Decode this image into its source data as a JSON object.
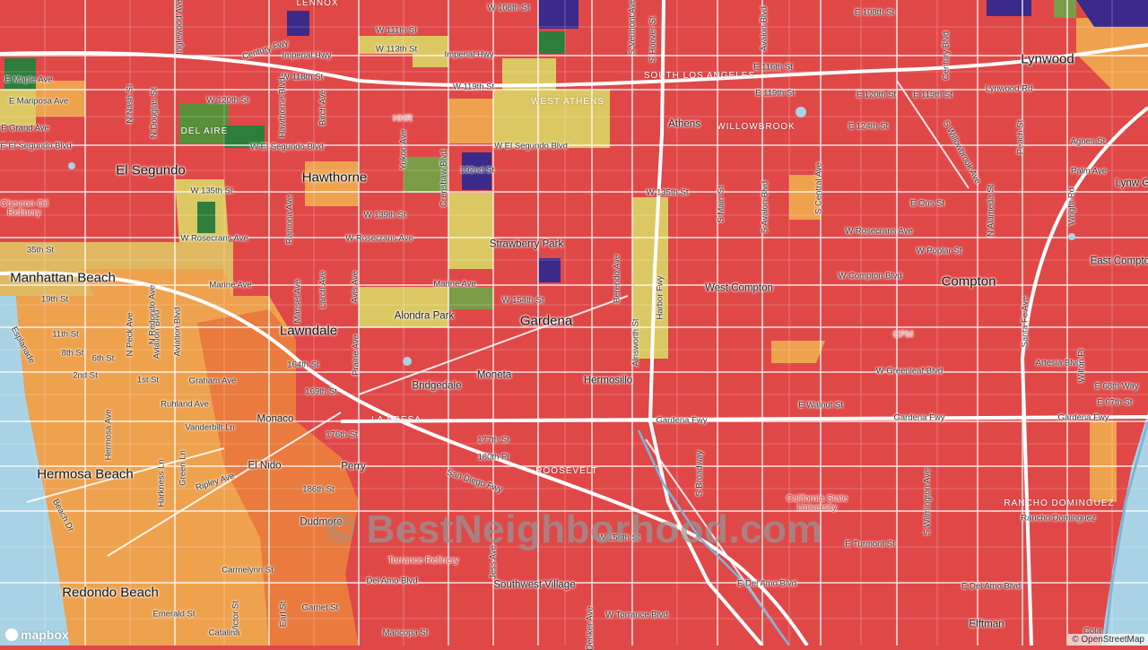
{
  "map": {
    "watermark": "© BestNeighborhood.com",
    "logo": "mapbox",
    "attribution": "© OpenStreetMap",
    "colors": {
      "high_crime": "#e04848",
      "medium_high": "#ea7a3e",
      "medium": "#efa24e",
      "low_medium": "#dcc862",
      "low": "#7a9c46",
      "very_low": "#2e7d3c",
      "lowest": "#3b2a8a",
      "water": "#a9d3e4"
    },
    "cities": [
      {
        "name": "El Segundo"
      },
      {
        "name": "Hawthorne"
      },
      {
        "name": "Manhattan Beach"
      },
      {
        "name": "Lawndale"
      },
      {
        "name": "Gardena"
      },
      {
        "name": "Compton"
      },
      {
        "name": "Lynwood"
      },
      {
        "name": "Hermosa Beach"
      },
      {
        "name": "Redondo Beach"
      }
    ],
    "neighborhoods": [
      {
        "name": "Athens"
      },
      {
        "name": "West Compton"
      },
      {
        "name": "Strawberry Park"
      },
      {
        "name": "Alondra Park"
      },
      {
        "name": "Bridgedale"
      },
      {
        "name": "Moneta"
      },
      {
        "name": "Hermosillo"
      },
      {
        "name": "Monaco"
      },
      {
        "name": "El Nido"
      },
      {
        "name": "Perry"
      },
      {
        "name": "Southwest Village"
      },
      {
        "name": "East Compton"
      },
      {
        "name": "Elftman"
      },
      {
        "name": "Dudmore"
      },
      {
        "name": "Lynw Gar"
      }
    ],
    "districts": [
      {
        "name": "WEST ATHENS"
      },
      {
        "name": "SOUTH LOS ANGELES"
      },
      {
        "name": "WILLOWBROOK"
      },
      {
        "name": "LA FRESA"
      },
      {
        "name": "ROOSEVELT"
      },
      {
        "name": "RANCHO DOMINGUEZ"
      },
      {
        "name": "DEL AIRE"
      },
      {
        "name": "LENNOX"
      }
    ],
    "pois": [
      {
        "name": "HHR"
      },
      {
        "name": "CPM"
      },
      {
        "name": "Torrance Refinery"
      },
      {
        "name": "Chevron Oil Refinery"
      },
      {
        "name": "California State University"
      }
    ],
    "streets": [
      "W 108th St",
      "E 108th St",
      "W 111th St",
      "W 113th St",
      "Imperial Hwy",
      "Imperial Hwy",
      "Century Fwy",
      "W 118th St",
      "W 119th St",
      "E 116th St",
      "E 119th St",
      "E 120th St",
      "E 119th St",
      "E 124th St",
      "W 120th St",
      "W El Segundo Blvd",
      "W El Segundo Blvd",
      "132nd St",
      "W 135th St",
      "W 135th St",
      "W 139th St",
      "W Rosecrans Ave",
      "W Rosecrans Ave",
      "W Rosecrans Ave",
      "Marine Ave",
      "Marine Ave",
      "W 154th St",
      "W Compton Blvd",
      "W Greenleaf Blvd",
      "164th St",
      "169th St",
      "176th St",
      "177th St",
      "180th Pl",
      "186th St",
      "Gardena Fwy",
      "Gardena Fwy",
      "Gardena Fwy",
      "E Walnut St",
      "San Diego Fwy",
      "Del Amo Blvd",
      "E Del Amo Blvd",
      "E Del Amo Blvd",
      "W Torrance Blvd",
      "E Turmont St",
      "Carmelynn St",
      "Emerald St",
      "Garnet St",
      "Maricopa St",
      "Graham Ave",
      "Ruhland Ave",
      "Vanderbilt Ln",
      "Ripley Ave",
      "35th St",
      "19th St",
      "11th St",
      "8th St",
      "2nd St",
      "6th St",
      "1st St",
      "E Maple Ave",
      "E Mariposa Ave",
      "E Grand Ave",
      "E El Segundo Blvd",
      "Lynwood Rd",
      "E 68th Way",
      "E 67th St",
      "W Poplar St",
      "E Ons St",
      "Agnes St",
      "Palm Ave",
      "Harbor Fwy",
      "Crenshaw Blvd",
      "Yukon Ave",
      "Prairie Ave",
      "Avalon Blvd",
      "S Avalon Blvd",
      "S Central Ave",
      "N Alameda St",
      "Santa Fe Ave",
      "S Wilmington Ave",
      "Peach St",
      "Wright Rd",
      "Century Blvd",
      "S Broadway",
      "Ainsworth St",
      "Berendo Ave",
      "Hawthorne Blvd",
      "Inglewood Ave",
      "Aviation Blvd",
      "N Douglas St",
      "N Nash St",
      "S Main St",
      "S Hoover St",
      "S Vermont Ave",
      "Ramona Ave",
      "Mansel Ave",
      "Larch Ave",
      "Birch Ave",
      "Aviation Blvd",
      "N Peck Ave",
      "N Redondo Ave",
      "Harkness Ln",
      "Green Ln",
      "Beach Dr",
      "Victor St",
      "Earl St",
      "Jess Ave",
      "Denker Ave",
      "W 156th St",
      "S Willowbrook Ave",
      "Rancho Dominguez",
      "Artesia Blvd",
      "Catalina",
      "Avis Ave",
      "Esplanade",
      "Wilton Pl",
      "Hermosa Ave",
      "Cota"
    ]
  }
}
